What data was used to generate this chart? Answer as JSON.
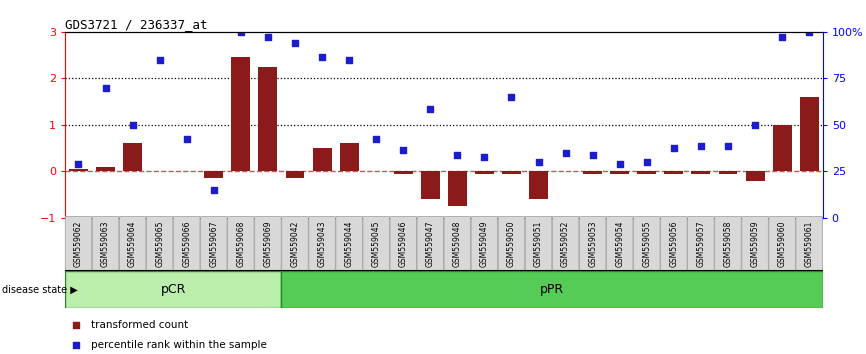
{
  "title": "GDS3721 / 236337_at",
  "samples": [
    "GSM559062",
    "GSM559063",
    "GSM559064",
    "GSM559065",
    "GSM559066",
    "GSM559067",
    "GSM559068",
    "GSM559069",
    "GSM559042",
    "GSM559043",
    "GSM559044",
    "GSM559045",
    "GSM559046",
    "GSM559047",
    "GSM559048",
    "GSM559049",
    "GSM559050",
    "GSM559051",
    "GSM559052",
    "GSM559053",
    "GSM559054",
    "GSM559055",
    "GSM559056",
    "GSM559057",
    "GSM559058",
    "GSM559059",
    "GSM559060",
    "GSM559061"
  ],
  "transformed_count": [
    0.05,
    0.1,
    0.6,
    0.0,
    0.0,
    -0.15,
    2.45,
    2.25,
    -0.15,
    0.5,
    0.6,
    0.0,
    -0.05,
    -0.6,
    -0.75,
    -0.05,
    -0.05,
    -0.6,
    0.0,
    -0.05,
    -0.05,
    -0.05,
    -0.05,
    -0.05,
    -0.05,
    -0.2,
    1.0,
    1.6
  ],
  "percentile_rank": [
    0.15,
    1.8,
    1.0,
    2.4,
    0.7,
    -0.4,
    3.0,
    2.9,
    2.75,
    2.45,
    2.4,
    0.7,
    0.45,
    1.35,
    0.35,
    0.3,
    1.6,
    0.2,
    0.4,
    0.35,
    0.15,
    0.2,
    0.5,
    0.55,
    0.55,
    1.0,
    2.9,
    3.0
  ],
  "pCR_count": 8,
  "pPR_count": 20,
  "ylim": [
    -1.0,
    3.0
  ],
  "yticks_left": [
    -1,
    0,
    1,
    2,
    3
  ],
  "right_ticks_pct": [
    0,
    25,
    50,
    75,
    100
  ],
  "bar_color": "#8B1A1A",
  "scatter_color": "#1C1CCC",
  "zero_line_color": "#CC5555",
  "hline_color": "black",
  "pCR_facecolor": "#BBEEAA",
  "pPR_facecolor": "#55CC55",
  "pCR_label": "pCR",
  "pPR_label": "pPR",
  "legend_bar_label": "transformed count",
  "legend_scatter_label": "percentile rank within the sample",
  "disease_state_label": "disease state"
}
